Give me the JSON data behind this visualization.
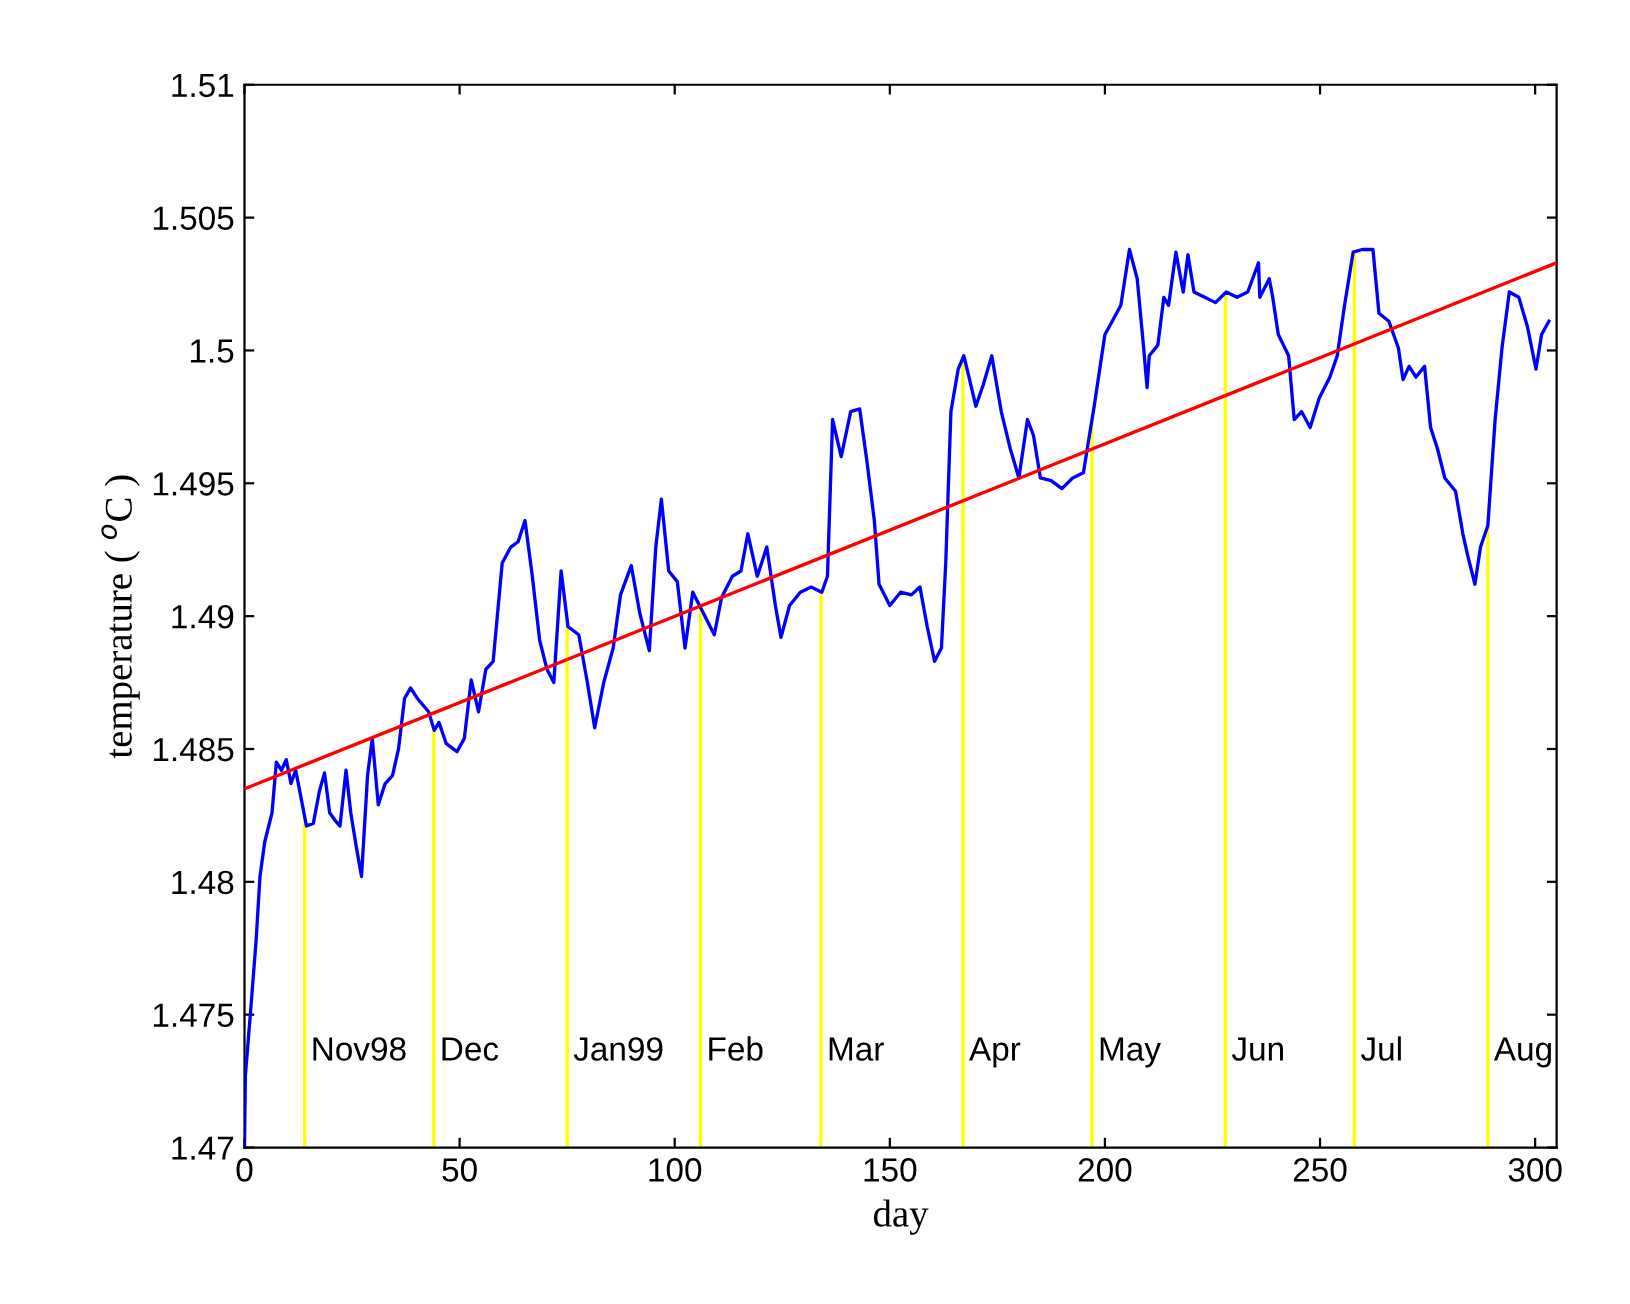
{
  "chart_data": {
    "type": "line",
    "xlabel": "day",
    "ylabel": "temperature ( $^{o}$C )",
    "xlim": [
      0,
      305
    ],
    "xticks": [
      0,
      50,
      100,
      150,
      200,
      250,
      300
    ],
    "ylim": [
      1.47,
      1.51
    ],
    "yticks": [
      1.47,
      1.475,
      1.48,
      1.485,
      1.49,
      1.495,
      1.5,
      1.505,
      1.51
    ],
    "grid": false,
    "legend": false,
    "series": [
      {
        "color": "#0000ff",
        "x": [
          0,
          0.2,
          1.4,
          2.7,
          3.6,
          4.7,
          6.4,
          7.4,
          8.6,
          9.7,
          10.8,
          11.9,
          13.1,
          14.4,
          16,
          17.4,
          18.6,
          19.8,
          21.1,
          22.2,
          23.6,
          24.7,
          26,
          27.2,
          28.6,
          29.7,
          31.1,
          32.7,
          34.4,
          35.8,
          37.2,
          38.6,
          40.2,
          42.8,
          44.1,
          45.2,
          46.9,
          49.4,
          51.1,
          52.7,
          54.4,
          56.1,
          57.8,
          59.9,
          61.9,
          63.6,
          65.2,
          66.9,
          68.6,
          70.3,
          71.9,
          73.6,
          75.2,
          77.7,
          79.7,
          81.4,
          83.5,
          85.7,
          87.4,
          89.9,
          91.9,
          94.1,
          95.6,
          96.9,
          98.6,
          100.6,
          102.4,
          104.2,
          106.7,
          109.2,
          110.9,
          113.4,
          115.4,
          117,
          119.2,
          121.4,
          123.4,
          124.7,
          126.7,
          129.2,
          131.7,
          134.2,
          135.5,
          136.7,
          138.7,
          140.9,
          143,
          144.7,
          146.4,
          147.5,
          150,
          152.5,
          155,
          157,
          158.7,
          160.4,
          162,
          163,
          164.2,
          165.9,
          167.2,
          168.4,
          170,
          171.7,
          173.7,
          175.9,
          178,
          180,
          182,
          183.4,
          185,
          187.5,
          190,
          192.5,
          195,
          197.5,
          200,
          201.7,
          203.7,
          205.7,
          207.5,
          209,
          209.8,
          210.3,
          212.3,
          213.7,
          214.8,
          216.5,
          218.2,
          219.3,
          220.7,
          223.2,
          225.7,
          228.2,
          230.7,
          233.2,
          235.7,
          236,
          238.2,
          239,
          240.3,
          242.7,
          244,
          245.7,
          247.7,
          249.8,
          252.3,
          254,
          255.7,
          257.7,
          259.8,
          262.3,
          263.7,
          266,
          268.2,
          269.3,
          270.7,
          272.3,
          274.3,
          275.7,
          277.3,
          279,
          281.5,
          283.2,
          284.3,
          286,
          287.3,
          289,
          290.7,
          292.3,
          294,
          296.2,
          298.2,
          300.2,
          301.5,
          303.2
        ],
        "values": [
          1.47,
          1.4727,
          1.4751,
          1.4778,
          1.4802,
          1.4815,
          1.4826,
          1.4845,
          1.4842,
          1.4846,
          1.4837,
          1.4842,
          1.4832,
          1.4821,
          1.4822,
          1.4834,
          1.4841,
          1.4826,
          1.4823,
          1.4821,
          1.4842,
          1.4826,
          1.4813,
          1.4802,
          1.484,
          1.4854,
          1.4829,
          1.4837,
          1.484,
          1.485,
          1.4869,
          1.4873,
          1.4869,
          1.4864,
          1.4857,
          1.486,
          1.4852,
          1.4849,
          1.4854,
          1.4876,
          1.4864,
          1.488,
          1.4883,
          1.492,
          1.4926,
          1.4928,
          1.4936,
          1.4915,
          1.4891,
          1.488,
          1.4875,
          1.4917,
          1.4896,
          1.4893,
          1.4875,
          1.4858,
          1.4875,
          1.4888,
          1.4908,
          1.4919,
          1.4901,
          1.4887,
          1.4926,
          1.4944,
          1.4917,
          1.4913,
          1.4888,
          1.4909,
          1.4901,
          1.4893,
          1.4907,
          1.4915,
          1.4917,
          1.4931,
          1.4915,
          1.4926,
          1.4904,
          1.4892,
          1.4904,
          1.4909,
          1.4911,
          1.4909,
          1.4915,
          1.4974,
          1.496,
          1.4977,
          1.4978,
          1.4958,
          1.4936,
          1.4912,
          1.4904,
          1.4909,
          1.4908,
          1.4911,
          1.4896,
          1.4883,
          1.4888,
          1.492,
          1.4977,
          1.4993,
          1.4998,
          1.499,
          1.4979,
          1.4987,
          1.4998,
          1.4977,
          1.4963,
          1.4952,
          1.4974,
          1.4968,
          1.4952,
          1.4951,
          1.4948,
          1.4952,
          1.4954,
          1.4979,
          1.5006,
          1.5011,
          1.5017,
          1.5038,
          1.5027,
          1.5001,
          1.4986,
          1.4998,
          1.5002,
          1.502,
          1.5017,
          1.5037,
          1.5022,
          1.5036,
          1.5022,
          1.502,
          1.5018,
          1.5022,
          1.502,
          1.5022,
          1.5033,
          1.502,
          1.5027,
          1.502,
          1.5006,
          1.4998,
          1.4974,
          1.4977,
          1.4971,
          1.4982,
          1.499,
          1.4998,
          1.5017,
          1.5037,
          1.5038,
          1.5038,
          1.5014,
          1.5011,
          1.5001,
          1.4989,
          1.4994,
          1.499,
          1.4994,
          1.4971,
          1.4963,
          1.4952,
          1.4947,
          1.4931,
          1.4923,
          1.4912,
          1.4926,
          1.4934,
          1.4974,
          1.5001,
          1.5022,
          1.502,
          1.5009,
          1.4993,
          1.5006,
          1.5011
        ]
      },
      {
        "color": "#ff0000",
        "x": [
          0,
          305
        ],
        "values": [
          1.4835,
          1.5033
        ]
      }
    ],
    "ref_lines": [
      {
        "axis": "x",
        "value": 14,
        "label": "Nov98",
        "color": "#ffff00"
      },
      {
        "axis": "x",
        "value": 44,
        "label": "Dec",
        "color": "#ffff00"
      },
      {
        "axis": "x",
        "value": 75,
        "label": "Jan99",
        "color": "#ffff00"
      },
      {
        "axis": "x",
        "value": 106,
        "label": "Feb",
        "color": "#ffff00"
      },
      {
        "axis": "x",
        "value": 134,
        "label": "Mar",
        "color": "#ffff00"
      },
      {
        "axis": "x",
        "value": 167,
        "label": "Apr",
        "color": "#ffff00"
      },
      {
        "axis": "x",
        "value": 197,
        "label": "May",
        "color": "#ffff00"
      },
      {
        "axis": "x",
        "value": 228,
        "label": "Jun",
        "color": "#ffff00"
      },
      {
        "axis": "x",
        "value": 258,
        "label": "Jul",
        "color": "#ffff00"
      },
      {
        "axis": "x",
        "value": 289,
        "label": "Aug",
        "color": "#ffff00"
      }
    ]
  }
}
